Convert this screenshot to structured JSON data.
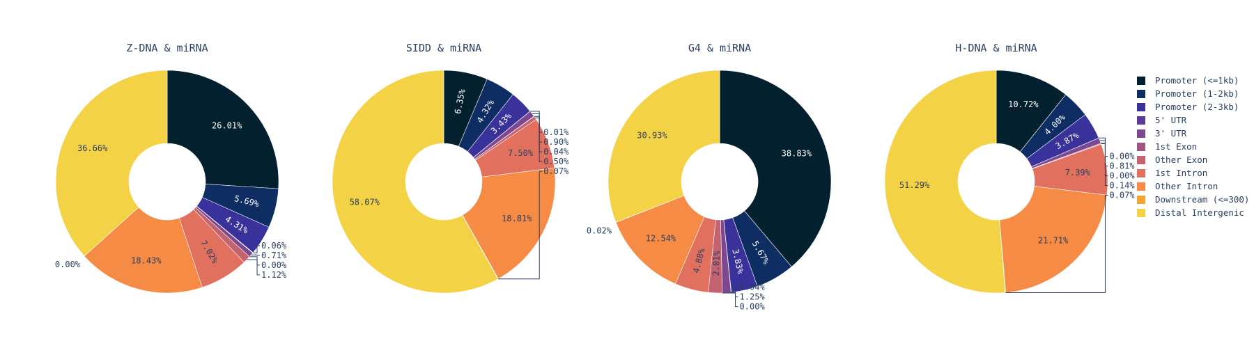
{
  "chart_data": [
    {
      "type": "pie",
      "title": "Z-DNA & miRNA",
      "categories": [
        "Promoter (<=1kb)",
        "Promoter (1-2kb)",
        "Promoter (2-3kb)",
        "5' UTR",
        "3' UTR",
        "1st Exon",
        "Other Exon",
        "1st Intron",
        "Other Intron",
        "Downstream (<=300)",
        "Distal Intergenic"
      ],
      "values": [
        26.01,
        5.69,
        4.31,
        0.06,
        0.71,
        0.0,
        1.12,
        7.02,
        18.43,
        0.0,
        36.66
      ],
      "labels": [
        "26.01%",
        "5.69%",
        "4.31%",
        "0.06%",
        "0.71%",
        "0.00%",
        "1.12%",
        "7.02%",
        "18.43%",
        "0.00%",
        "36.66%"
      ]
    },
    {
      "type": "pie",
      "title": "SIDD & miRNA",
      "categories": [
        "Promoter (<=1kb)",
        "Promoter (1-2kb)",
        "Promoter (2-3kb)",
        "5' UTR",
        "3' UTR",
        "1st Exon",
        "Other Exon",
        "1st Intron",
        "Other Intron",
        "Downstream (<=300)",
        "Distal Intergenic"
      ],
      "values": [
        6.35,
        4.32,
        3.43,
        0.01,
        0.9,
        0.04,
        0.5,
        7.5,
        18.81,
        0.07,
        58.07
      ],
      "labels": [
        "6.35%",
        "4.32%",
        "3.43%",
        "0.01%",
        "0.90%",
        "0.04%",
        "0.50%",
        "7.50%",
        "18.81%",
        "0.07%",
        "58.07%"
      ]
    },
    {
      "type": "pie",
      "title": "G4 & miRNA",
      "categories": [
        "Promoter (<=1kb)",
        "Promoter (1-2kb)",
        "Promoter (2-3kb)",
        "5' UTR",
        "3' UTR",
        "1st Exon",
        "Other Exon",
        "1st Intron",
        "Other Intron",
        "Downstream (<=300)",
        "Distal Intergenic"
      ],
      "values": [
        38.83,
        5.67,
        3.83,
        0.04,
        1.25,
        0.0,
        2.01,
        4.88,
        12.54,
        0.02,
        30.93
      ],
      "labels": [
        "38.83%",
        "5.67%",
        "3.83%",
        "0.04%",
        "1.25%",
        "0.00%",
        "2.01%",
        "4.88%",
        "12.54%",
        "0.02%",
        "30.93%"
      ]
    },
    {
      "type": "pie",
      "title": "H-DNA & miRNA",
      "categories": [
        "Promoter (<=1kb)",
        "Promoter (1-2kb)",
        "Promoter (2-3kb)",
        "5' UTR",
        "3' UTR",
        "1st Exon",
        "Other Exon",
        "1st Intron",
        "Other Intron",
        "Downstream (<=300)",
        "Distal Intergenic"
      ],
      "values": [
        10.72,
        4.0,
        3.87,
        0.0,
        0.81,
        0.0,
        0.14,
        7.39,
        21.71,
        0.07,
        51.29
      ],
      "labels": [
        "10.72%",
        "4.00%",
        "3.87%",
        "0.00%",
        "0.81%",
        "0.00%",
        "0.14%",
        "7.39%",
        "21.71%",
        "0.07%",
        "51.29%"
      ]
    }
  ],
  "legend": {
    "placement": "right",
    "items": [
      {
        "label": "Promoter (<=1kb)",
        "color": "#03202e"
      },
      {
        "label": "Promoter (1-2kb)",
        "color": "#0e2d63"
      },
      {
        "label": "Promoter (2-3kb)",
        "color": "#38329a"
      },
      {
        "label": "5' UTR",
        "color": "#5c3a99"
      },
      {
        "label": "3' UTR",
        "color": "#7e4890"
      },
      {
        "label": "1st Exon",
        "color": "#a35582"
      },
      {
        "label": "Other Exon",
        "color": "#c4626f"
      },
      {
        "label": "1st Intron",
        "color": "#e2705f"
      },
      {
        "label": "Other Intron",
        "color": "#f58b44"
      },
      {
        "label": "Downstream (<=300)",
        "color": "#f4a530"
      },
      {
        "label": "Distal Intergenic",
        "color": "#f4d245"
      }
    ]
  }
}
